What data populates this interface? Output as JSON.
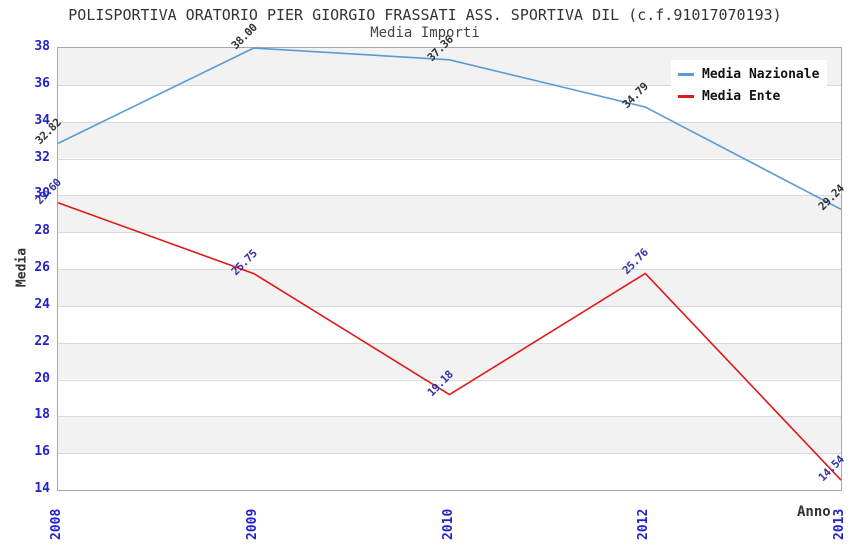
{
  "chart_data": {
    "type": "line",
    "title": "POLISPORTIVA ORATORIO PIER GIORGIO FRASSATI ASS. SPORTIVA DIL (c.f.91017070193)",
    "subtitle": "Media Importi",
    "xlabel": "Anno",
    "ylabel": "Media",
    "x": [
      "2008",
      "2009",
      "2010",
      "2012",
      "2013"
    ],
    "series": [
      {
        "name": "Media Nazionale",
        "values": [
          32.82,
          38.0,
          37.36,
          34.79,
          29.24
        ],
        "color": "#5b9bd5",
        "label_color": "#333333"
      },
      {
        "name": "Media Ente",
        "values": [
          29.6,
          25.75,
          19.18,
          25.76,
          14.54
        ],
        "color": "#e11818",
        "label_color": "#3333a6"
      }
    ],
    "ylim": [
      14,
      38
    ],
    "ytick_step": 2,
    "grid": "alternating-horizontal-bands",
    "legend_position": "top-right",
    "style": {
      "band_color": "#f2f2f2",
      "band_alt_color": "#ffffff",
      "gridline_color": "#d9d9d9",
      "plot_border_color": "#a8a8a8",
      "tick_label_color": "#2222cc",
      "title_color": "#333333",
      "subtitle_color": "#444444",
      "axis_title_color": "#333333",
      "legend_text_color": "#111111",
      "background_color": "#ffffff"
    }
  }
}
